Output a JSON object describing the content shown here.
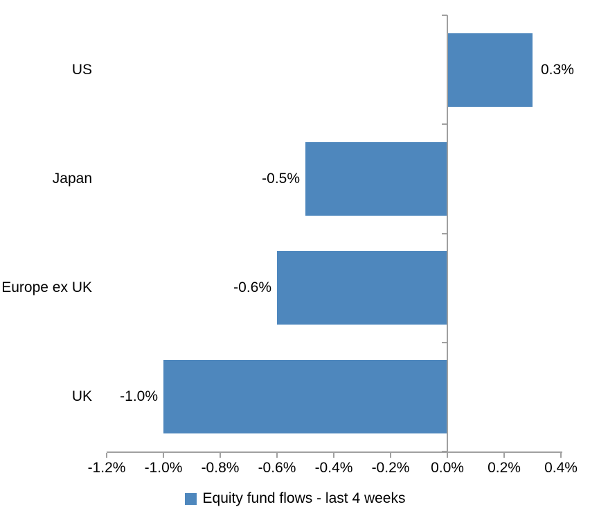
{
  "chart_data": {
    "type": "bar",
    "orientation": "horizontal",
    "title": "",
    "xlabel": "",
    "ylabel": "",
    "categories": [
      "US",
      "Japan",
      "Europe ex UK",
      "UK"
    ],
    "series": [
      {
        "name": "Equity fund flows - last 4 weeks",
        "values": [
          0.3,
          -0.5,
          -0.6,
          -1.0
        ],
        "data_labels": [
          "0.3%",
          "-0.5%",
          "-0.6%",
          "-1.0%"
        ]
      }
    ],
    "xlim": [
      -1.2,
      0.4
    ],
    "x_tick_step": 0.2,
    "x_ticks": [
      {
        "value": -1.2,
        "label": "-1.2%"
      },
      {
        "value": -1.0,
        "label": "-1.0%"
      },
      {
        "value": -0.8,
        "label": "-0.8%"
      },
      {
        "value": -0.6,
        "label": "-0.6%"
      },
      {
        "value": -0.4,
        "label": "-0.4%"
      },
      {
        "value": -0.2,
        "label": "-0.2%"
      },
      {
        "value": 0.0,
        "label": "0.0%"
      },
      {
        "value": 0.2,
        "label": "0.2%"
      },
      {
        "value": 0.4,
        "label": "0.4%"
      }
    ],
    "grid": false,
    "legend": {
      "position": "bottom",
      "label": "Equity fund flows - last 4 weeks"
    },
    "colors": {
      "bar": "#4E87BD",
      "axis": "#A0A0A0",
      "text": "#000000",
      "background": "#FFFFFF"
    }
  }
}
